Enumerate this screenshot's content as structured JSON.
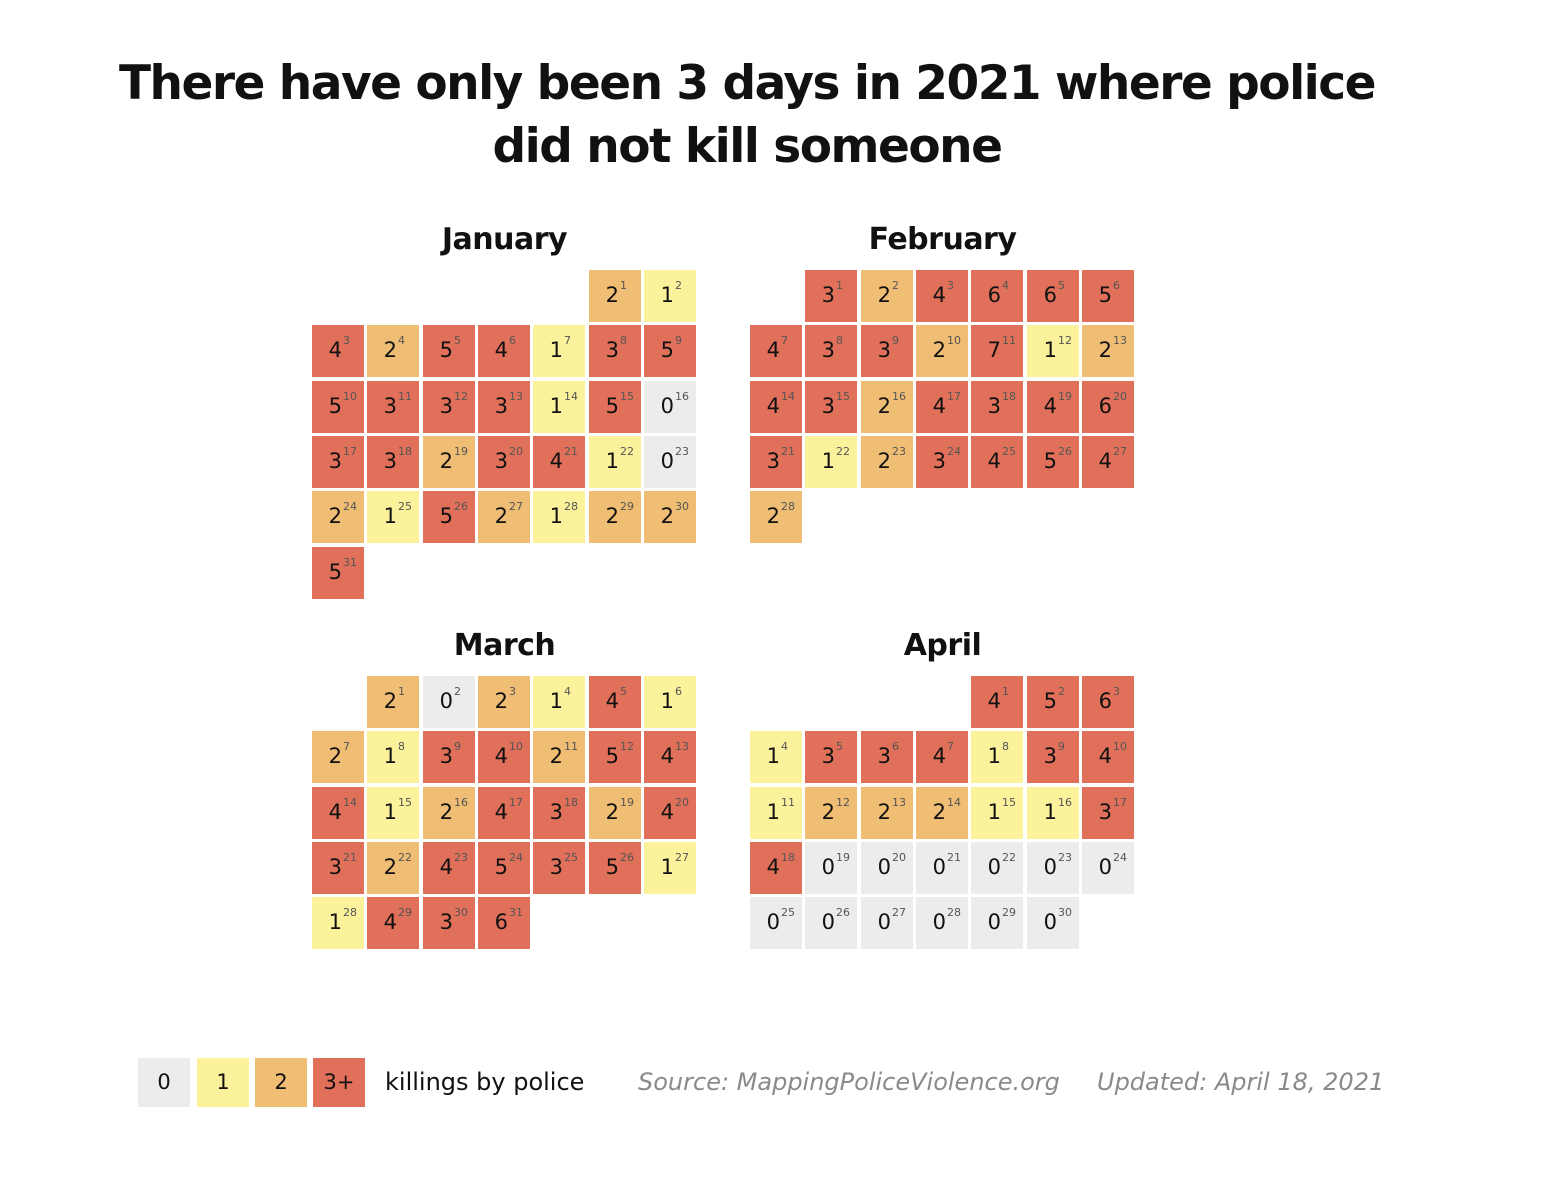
{
  "title": [
    "There have only been 3 days in 2021 where police",
    "did not kill someone"
  ],
  "colors": {
    "0": "#ececec",
    "1": "#fbf29b",
    "2": "#efbd73",
    "3plus": "#e0705a"
  },
  "chart_data": {
    "type": "heatmap",
    "year": 2021,
    "value_label": "killings by police",
    "months": [
      {
        "name": "January",
        "start_weekday": 5,
        "values": [
          2,
          1,
          4,
          2,
          5,
          4,
          1,
          3,
          5,
          5,
          3,
          3,
          3,
          1,
          5,
          0,
          3,
          3,
          2,
          3,
          4,
          1,
          0,
          2,
          1,
          5,
          2,
          1,
          2,
          2,
          5
        ]
      },
      {
        "name": "February",
        "start_weekday": 1,
        "values": [
          3,
          2,
          4,
          6,
          6,
          5,
          4,
          3,
          3,
          2,
          7,
          1,
          2,
          4,
          3,
          2,
          4,
          3,
          4,
          6,
          3,
          1,
          2,
          3,
          4,
          5,
          4,
          2
        ]
      },
      {
        "name": "March",
        "start_weekday": 1,
        "values": [
          2,
          0,
          2,
          1,
          4,
          1,
          2,
          1,
          3,
          4,
          2,
          5,
          4,
          4,
          1,
          2,
          4,
          3,
          2,
          4,
          3,
          2,
          4,
          5,
          3,
          5,
          1,
          1,
          4,
          3,
          6
        ]
      },
      {
        "name": "April",
        "start_weekday": 4,
        "values": [
          4,
          5,
          6,
          1,
          3,
          3,
          4,
          1,
          3,
          4,
          1,
          2,
          2,
          2,
          1,
          1,
          3,
          4,
          0,
          0,
          0,
          0,
          0,
          0,
          0,
          0,
          0,
          0,
          0,
          0
        ]
      }
    ]
  },
  "legend": {
    "items": [
      "0",
      "1",
      "2",
      "3+"
    ],
    "label": "killings by police"
  },
  "source": "Source: MappingPoliceViolence.org",
  "updated": "Updated: April 18, 2021"
}
